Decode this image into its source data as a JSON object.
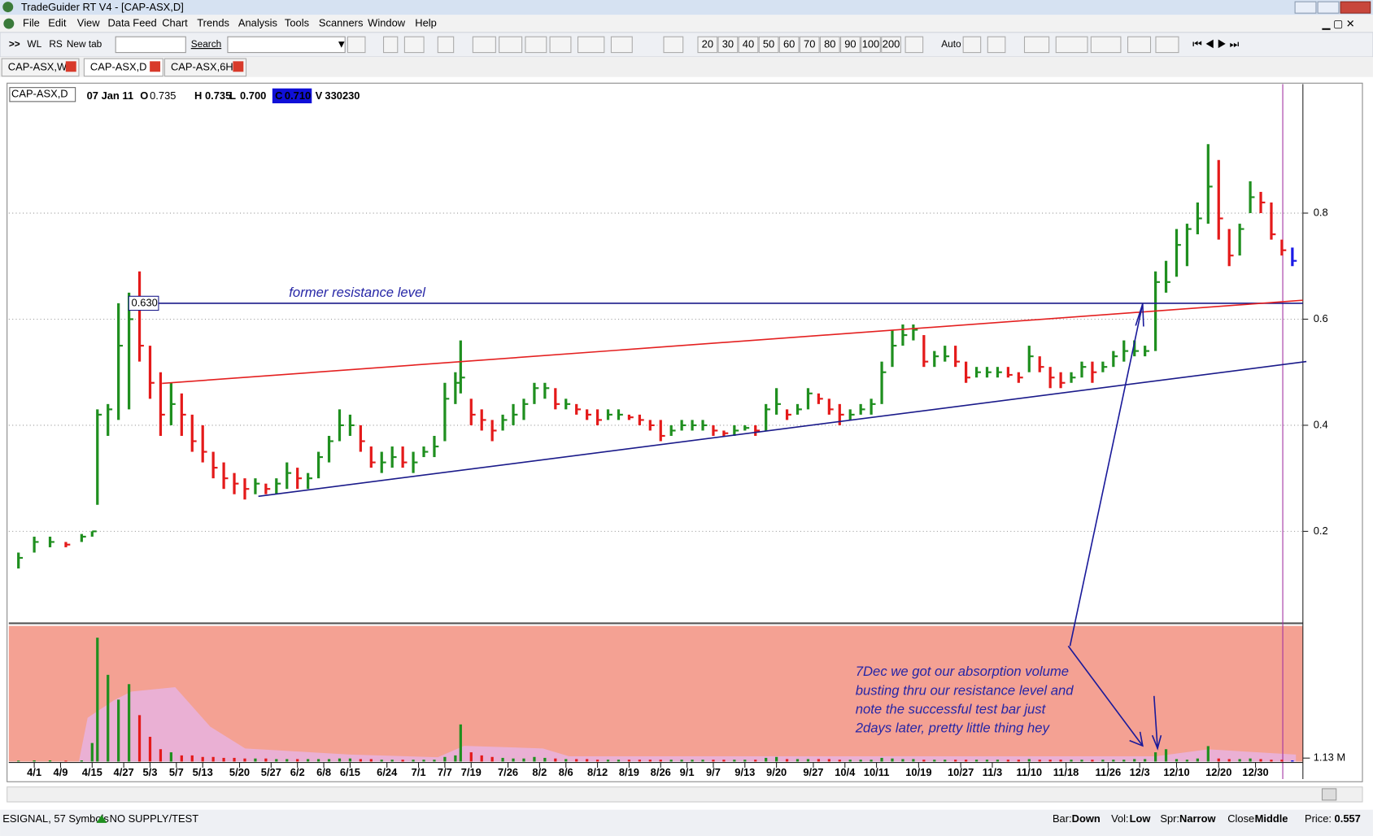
{
  "window": {
    "title": "TradeGuider RT V4 - [CAP-ASX,D]"
  },
  "menu": [
    "File",
    "Edit",
    "View",
    "Data Feed",
    "Chart",
    "Trends",
    "Analysis",
    "Tools",
    "Scanners",
    "Window",
    "Help"
  ],
  "toolbar": {
    "buttons": [
      ">>",
      "WL",
      "RS",
      "New tab"
    ],
    "search": "Search",
    "periods": [
      "20",
      "30",
      "40",
      "50",
      "60",
      "70",
      "80",
      "90",
      "100",
      "200"
    ],
    "auto": "Auto"
  },
  "tabs": [
    "CAP-ASX,W",
    "CAP-ASX,D",
    "CAP-ASX,6H"
  ],
  "quote": {
    "symbol": "CAP-ASX,D",
    "date": "07 Jan 11",
    "fields": [
      {
        "label": "O",
        "value": "0.735"
      },
      {
        "label": "H",
        "value": "0.735"
      },
      {
        "label": "L",
        "value": "0.700"
      },
      {
        "label": "C",
        "value": "0.710"
      },
      {
        "label": "V",
        "value": "330230"
      }
    ]
  },
  "chart_data": {
    "type": "ohlc",
    "x": [
      0,
      3,
      6,
      9,
      12,
      14,
      15,
      17,
      19,
      21,
      23,
      25,
      27,
      29,
      31,
      33,
      35,
      37,
      39,
      41,
      43,
      45,
      47,
      49,
      51,
      53,
      55,
      57,
      59,
      61,
      63,
      65,
      67,
      69,
      71,
      73,
      75,
      77,
      79,
      81,
      83,
      84,
      86,
      88,
      90,
      92,
      94,
      96,
      98,
      100,
      102,
      104,
      106,
      108,
      110,
      112,
      114,
      116,
      118,
      120,
      122,
      124,
      126,
      128,
      130,
      132,
      134,
      136,
      138,
      140,
      142,
      144,
      146,
      148,
      150,
      152,
      154,
      156,
      158,
      160,
      162,
      164,
      166,
      168,
      170,
      172,
      174,
      176,
      178,
      180,
      182,
      184,
      186,
      188,
      190,
      192,
      194,
      196,
      198,
      200,
      202,
      204,
      206,
      208,
      210,
      212,
      214,
      216,
      218,
      220,
      222,
      224,
      226,
      228,
      230,
      232,
      234,
      236,
      238,
      240,
      242
    ],
    "high": [
      0.16,
      0.19,
      0.19,
      0.18,
      0.195,
      0.2,
      0.43,
      0.44,
      0.63,
      0.65,
      0.69,
      0.55,
      0.5,
      0.48,
      0.46,
      0.42,
      0.4,
      0.35,
      0.33,
      0.31,
      0.3,
      0.3,
      0.29,
      0.3,
      0.33,
      0.32,
      0.31,
      0.35,
      0.38,
      0.43,
      0.42,
      0.4,
      0.36,
      0.35,
      0.36,
      0.36,
      0.35,
      0.36,
      0.38,
      0.48,
      0.5,
      0.56,
      0.45,
      0.43,
      0.41,
      0.42,
      0.44,
      0.45,
      0.48,
      0.48,
      0.47,
      0.45,
      0.44,
      0.43,
      0.43,
      0.43,
      0.43,
      0.42,
      0.42,
      0.41,
      0.41,
      0.4,
      0.41,
      0.41,
      0.41,
      0.4,
      0.39,
      0.4,
      0.4,
      0.4,
      0.44,
      0.47,
      0.43,
      0.44,
      0.47,
      0.46,
      0.45,
      0.44,
      0.43,
      0.44,
      0.45,
      0.52,
      0.58,
      0.59,
      0.59,
      0.57,
      0.54,
      0.55,
      0.55,
      0.52,
      0.51,
      0.51,
      0.51,
      0.51,
      0.5,
      0.55,
      0.53,
      0.51,
      0.5,
      0.5,
      0.52,
      0.52,
      0.52,
      0.54,
      0.56,
      0.56,
      0.55,
      0.69,
      0.71,
      0.77,
      0.78,
      0.82,
      0.93,
      0.9,
      0.77,
      0.78,
      0.86,
      0.84,
      0.82,
      0.75,
      0.735
    ],
    "low": [
      0.13,
      0.16,
      0.17,
      0.17,
      0.18,
      0.19,
      0.25,
      0.38,
      0.41,
      0.43,
      0.52,
      0.45,
      0.38,
      0.4,
      0.38,
      0.35,
      0.33,
      0.3,
      0.28,
      0.27,
      0.26,
      0.27,
      0.27,
      0.27,
      0.28,
      0.28,
      0.28,
      0.3,
      0.33,
      0.37,
      0.38,
      0.35,
      0.32,
      0.31,
      0.32,
      0.32,
      0.31,
      0.34,
      0.34,
      0.37,
      0.44,
      0.46,
      0.4,
      0.39,
      0.37,
      0.39,
      0.4,
      0.41,
      0.44,
      0.45,
      0.43,
      0.43,
      0.42,
      0.41,
      0.4,
      0.41,
      0.41,
      0.41,
      0.4,
      0.39,
      0.37,
      0.38,
      0.39,
      0.39,
      0.39,
      0.38,
      0.38,
      0.38,
      0.39,
      0.38,
      0.39,
      0.42,
      0.41,
      0.42,
      0.43,
      0.44,
      0.42,
      0.4,
      0.41,
      0.42,
      0.42,
      0.44,
      0.51,
      0.55,
      0.56,
      0.51,
      0.51,
      0.52,
      0.51,
      0.48,
      0.49,
      0.49,
      0.49,
      0.49,
      0.48,
      0.5,
      0.5,
      0.47,
      0.47,
      0.48,
      0.49,
      0.48,
      0.5,
      0.51,
      0.52,
      0.53,
      0.53,
      0.54,
      0.65,
      0.68,
      0.7,
      0.76,
      0.78,
      0.75,
      0.7,
      0.72,
      0.8,
      0.8,
      0.75,
      0.72,
      0.7
    ],
    "close": [
      0.15,
      0.18,
      0.18,
      0.175,
      0.19,
      0.2,
      0.42,
      0.43,
      0.55,
      0.6,
      0.55,
      0.48,
      0.42,
      0.44,
      0.42,
      0.37,
      0.35,
      0.32,
      0.3,
      0.29,
      0.28,
      0.29,
      0.28,
      0.29,
      0.31,
      0.3,
      0.3,
      0.34,
      0.37,
      0.4,
      0.4,
      0.37,
      0.33,
      0.33,
      0.34,
      0.33,
      0.33,
      0.35,
      0.36,
      0.45,
      0.48,
      0.49,
      0.42,
      0.41,
      0.39,
      0.41,
      0.42,
      0.44,
      0.47,
      0.47,
      0.44,
      0.44,
      0.43,
      0.42,
      0.41,
      0.42,
      0.42,
      0.415,
      0.41,
      0.4,
      0.38,
      0.39,
      0.4,
      0.4,
      0.4,
      0.39,
      0.385,
      0.39,
      0.395,
      0.39,
      0.43,
      0.44,
      0.42,
      0.43,
      0.46,
      0.45,
      0.43,
      0.42,
      0.42,
      0.43,
      0.44,
      0.5,
      0.55,
      0.57,
      0.58,
      0.52,
      0.53,
      0.53,
      0.52,
      0.49,
      0.5,
      0.5,
      0.5,
      0.495,
      0.49,
      0.53,
      0.51,
      0.49,
      0.48,
      0.49,
      0.51,
      0.5,
      0.51,
      0.53,
      0.54,
      0.54,
      0.54,
      0.67,
      0.67,
      0.74,
      0.77,
      0.79,
      0.85,
      0.79,
      0.72,
      0.77,
      0.83,
      0.82,
      0.76,
      0.73,
      0.71
    ],
    "volume": [
      0.3,
      0.4,
      0.4,
      0.3,
      0.4,
      6,
      40,
      28,
      20,
      25,
      15,
      8,
      4,
      3,
      2,
      2,
      1.5,
      1.5,
      1.2,
      1.2,
      1,
      1,
      1,
      0.8,
      0.8,
      0.8,
      0.8,
      0.8,
      0.8,
      1,
      1,
      0.8,
      0.8,
      0.6,
      0.6,
      0.6,
      0.6,
      0.6,
      0.6,
      1.5,
      2,
      12,
      3,
      2,
      1.5,
      1.2,
      1,
      1,
      1.5,
      1.2,
      1,
      0.8,
      0.8,
      0.8,
      0.6,
      0.6,
      0.6,
      0.6,
      0.6,
      0.6,
      0.6,
      0.6,
      0.6,
      0.6,
      0.6,
      0.6,
      0.6,
      0.6,
      0.6,
      0.6,
      1.2,
      1.5,
      0.8,
      0.8,
      0.8,
      0.8,
      0.8,
      0.6,
      0.6,
      0.6,
      0.6,
      1.2,
      1,
      0.8,
      0.8,
      0.6,
      0.6,
      0.6,
      0.6,
      0.6,
      0.6,
      0.6,
      0.6,
      0.6,
      0.6,
      0.8,
      0.6,
      0.6,
      0.6,
      0.6,
      0.6,
      0.6,
      0.6,
      0.6,
      0.6,
      0.8,
      0.8,
      3,
      4,
      0.8,
      0.6,
      1,
      5,
      1,
      0.8,
      0.8,
      1,
      0.8,
      0.6,
      0.6,
      0.4
    ],
    "xlim": [
      -1,
      244
    ],
    "xticks": [
      {
        "value": 3,
        "label": "4/1"
      },
      {
        "value": 8,
        "label": "4/9"
      },
      {
        "value": 14,
        "label": "4/15"
      },
      {
        "value": 20,
        "label": "4/27"
      },
      {
        "value": 25,
        "label": "5/3"
      },
      {
        "value": 30,
        "label": "5/7"
      },
      {
        "value": 35,
        "label": "5/13"
      },
      {
        "value": 42,
        "label": "5/20"
      },
      {
        "value": 48,
        "label": "5/27"
      },
      {
        "value": 53,
        "label": "6/2"
      },
      {
        "value": 58,
        "label": "6/8"
      },
      {
        "value": 63,
        "label": "6/15"
      },
      {
        "value": 70,
        "label": "6/24"
      },
      {
        "value": 76,
        "label": "7/1"
      },
      {
        "value": 81,
        "label": "7/7"
      },
      {
        "value": 86,
        "label": "7/19"
      },
      {
        "value": 93,
        "label": "7/26"
      },
      {
        "value": 99,
        "label": "8/2"
      },
      {
        "value": 104,
        "label": "8/6"
      },
      {
        "value": 110,
        "label": "8/12"
      },
      {
        "value": 116,
        "label": "8/19"
      },
      {
        "value": 122,
        "label": "8/26"
      },
      {
        "value": 127,
        "label": "9/1"
      },
      {
        "value": 132,
        "label": "9/7"
      },
      {
        "value": 138,
        "label": "9/13"
      },
      {
        "value": 144,
        "label": "9/20"
      },
      {
        "value": 151,
        "label": "9/27"
      },
      {
        "value": 157,
        "label": "10/4"
      },
      {
        "value": 163,
        "label": "10/11"
      },
      {
        "value": 171,
        "label": "10/19"
      },
      {
        "value": 179,
        "label": "10/27"
      },
      {
        "value": 185,
        "label": "11/3"
      },
      {
        "value": 192,
        "label": "11/10"
      },
      {
        "value": 199,
        "label": "11/18"
      },
      {
        "value": 207,
        "label": "11/26"
      },
      {
        "value": 213,
        "label": "12/3"
      },
      {
        "value": 220,
        "label": "12/10"
      },
      {
        "value": 228,
        "label": "12/20"
      },
      {
        "value": 235,
        "label": "12/30"
      }
    ],
    "ylim": [
      0.03,
      1.04
    ],
    "yticks": [
      0.2,
      0.4,
      0.6,
      0.8
    ],
    "grid": true,
    "vlim": [
      0,
      43.8
    ],
    "vticks": [
      {
        "value": 1.13,
        "label": "1.13 M"
      }
    ],
    "up_color": "#1f8f1f",
    "down_color": "#e41a1a",
    "last_color": "#1a1ae6",
    "annotations": {
      "resistance_label": "former resistance level",
      "resistance_level": {
        "value": 0.63,
        "label": "0.630"
      },
      "note": [
        "7Dec we got our absorption volume",
        "busting thru our resistance level and",
        "note the successful test bar just",
        "2days later, pretty little thing hey"
      ]
    }
  },
  "status": {
    "feed": "ESIGNAL, 57 Symbols",
    "signal": "NO SUPPLY/TEST",
    "items": [
      {
        "label": "Bar:",
        "value": "Down"
      },
      {
        "label": "Vol:",
        "value": "Low"
      },
      {
        "label": "Spr:",
        "value": "Narrow"
      },
      {
        "label": "Close:",
        "value": "Middle"
      },
      {
        "label": "Price:",
        "value": "0.557"
      }
    ]
  }
}
